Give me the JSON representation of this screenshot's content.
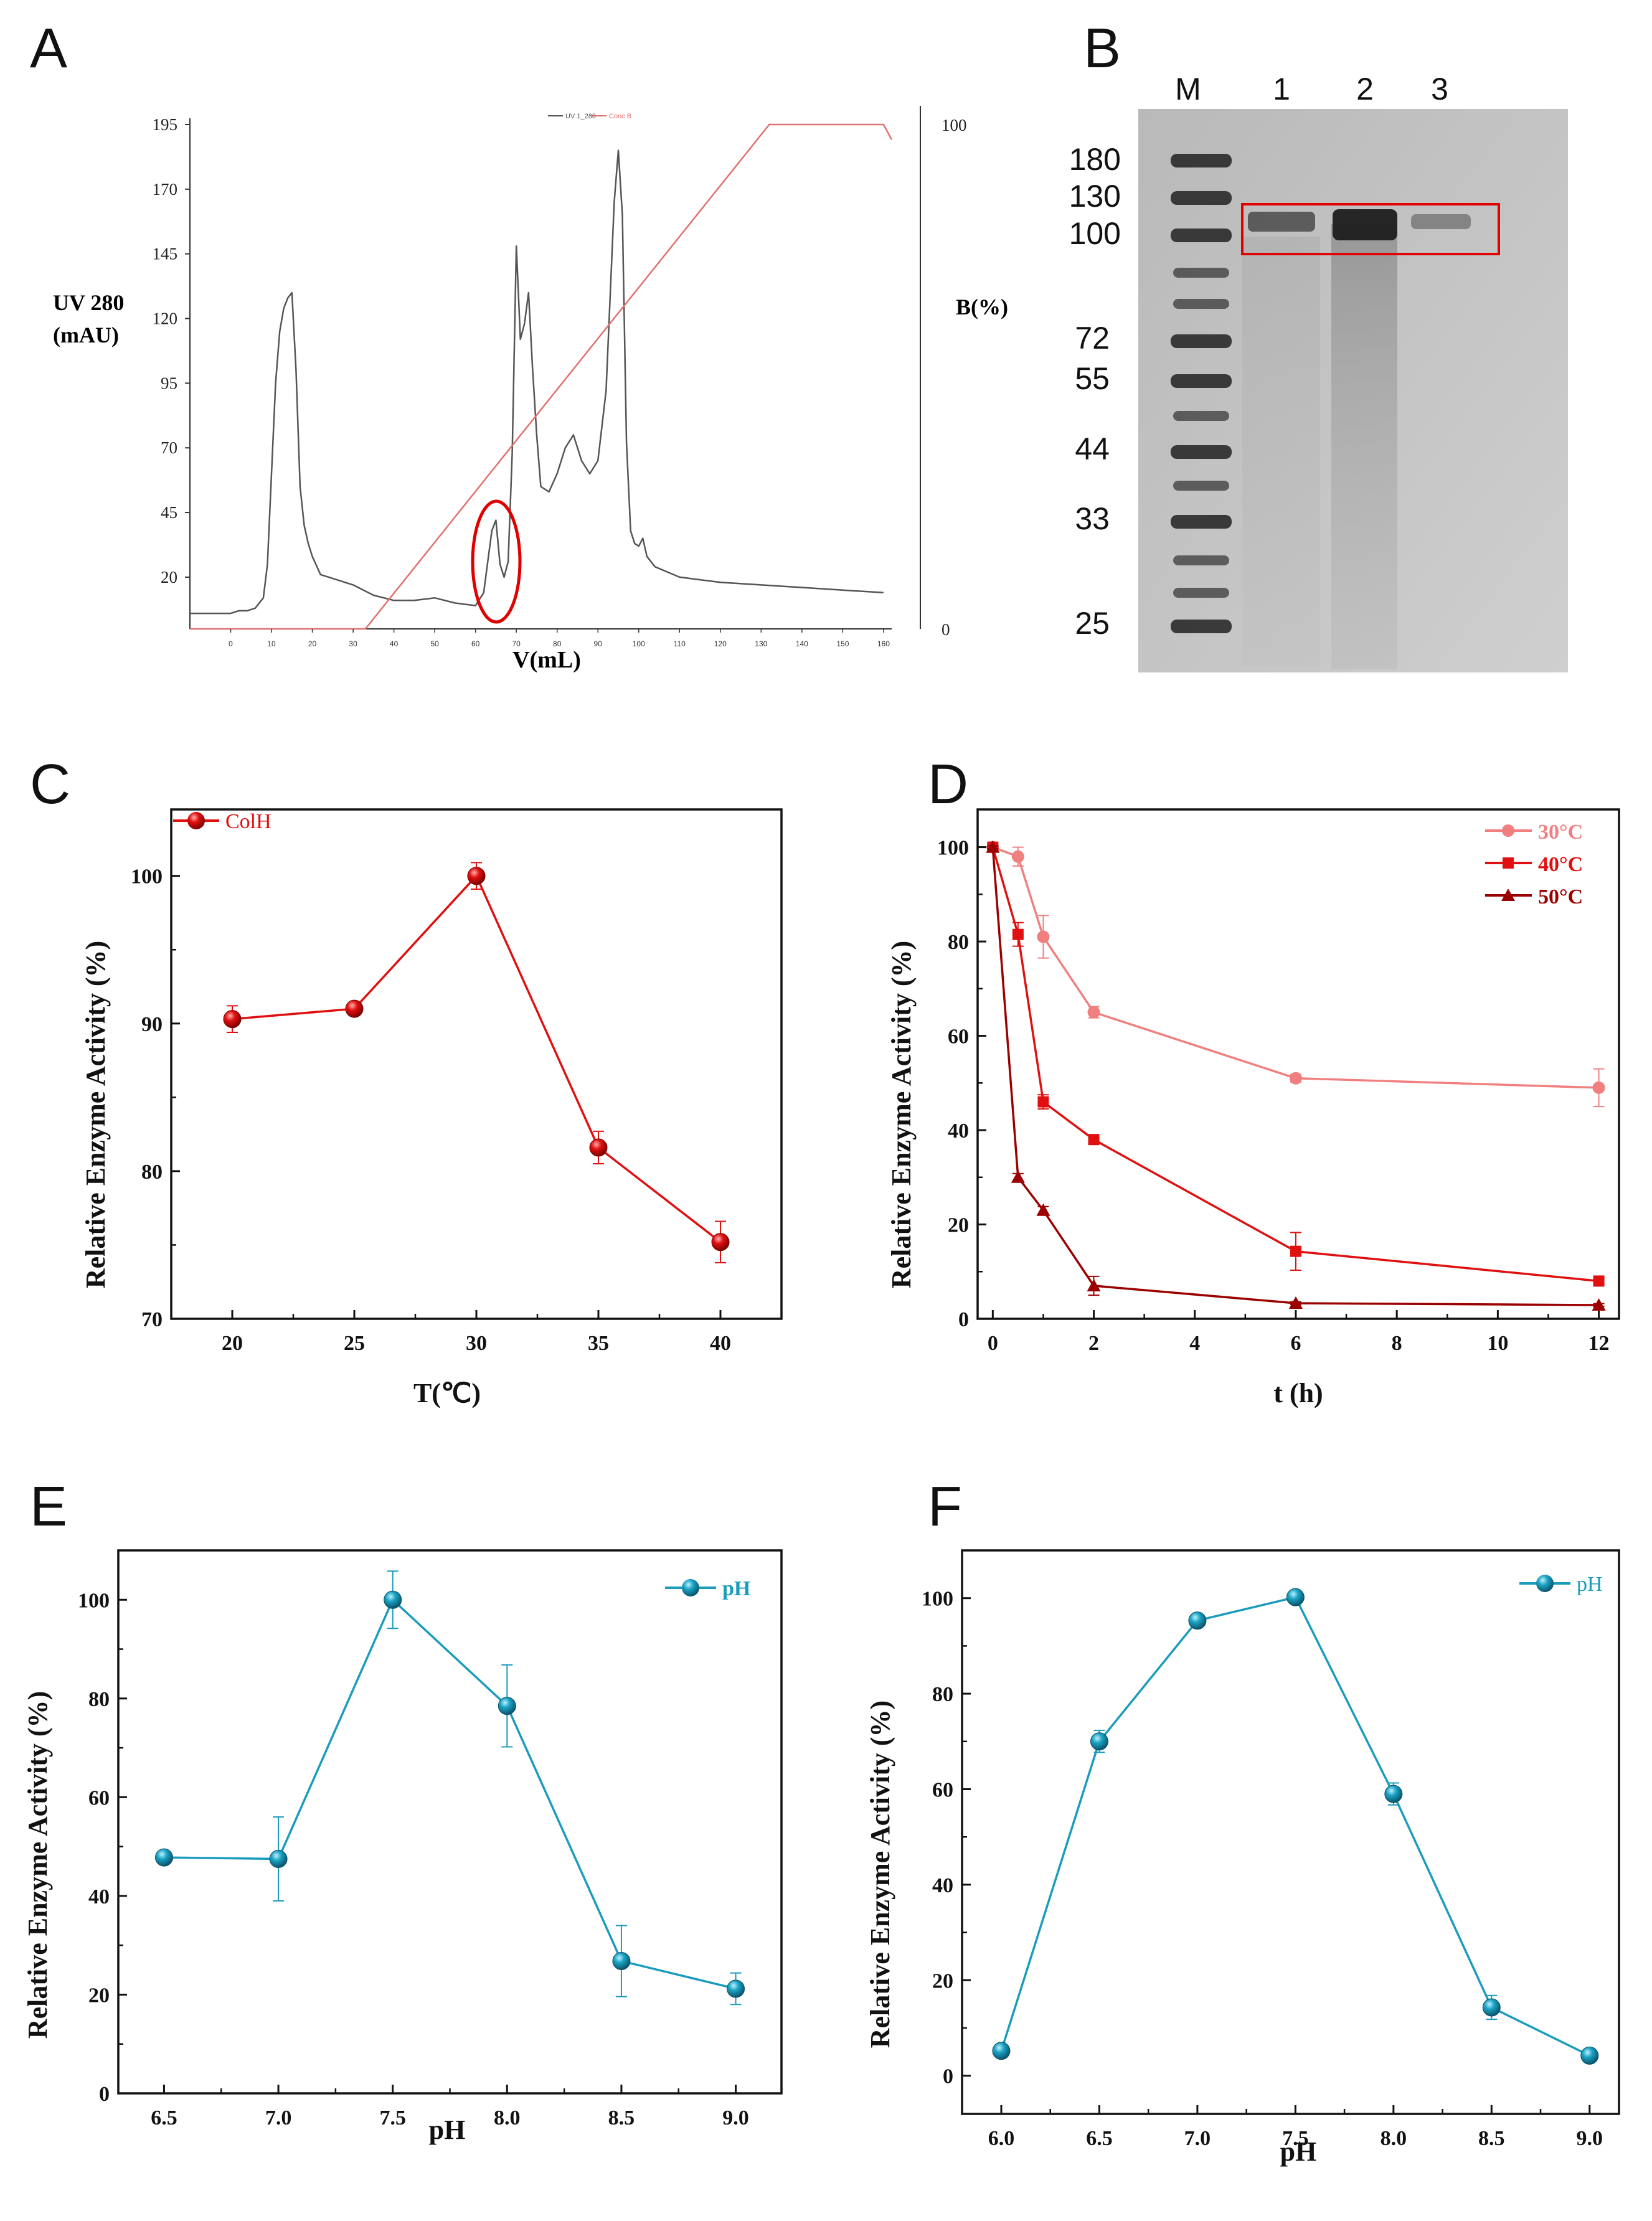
{
  "panels": {
    "A": "A",
    "B": "B",
    "C": "C",
    "D": "D",
    "E": "E",
    "F": "F"
  },
  "colors": {
    "uv_trace": "#555555",
    "gradient": "#e07070",
    "highlight": "#e00000",
    "colh": "#e01010",
    "d30": "#f08080",
    "d40": "#e01010",
    "d50": "#9b0000",
    "ph": "#1a9cbc"
  },
  "chart_data": [
    {
      "panel": "A",
      "type": "line",
      "ylabel_lines": [
        "UV 280",
        "(mAU)"
      ],
      "y2label": "B(%)",
      "xlabel": "V(mL)",
      "legend": [
        "UV 1_280",
        "Conc B"
      ],
      "y_ticks": [
        20,
        45,
        70,
        95,
        120,
        145,
        170,
        195
      ],
      "ylim": [
        0,
        195
      ],
      "y2_ticks": [
        0,
        100
      ],
      "y2lim": [
        0,
        100
      ],
      "x_ticks": [
        0,
        10,
        20,
        30,
        40,
        50,
        60,
        70,
        80,
        90,
        100,
        110,
        120,
        130,
        140,
        150,
        160
      ],
      "xlim": [
        -10,
        162
      ],
      "series": [
        {
          "name": "UV 1_280",
          "x": [
            -10,
            -2,
            0,
            2,
            4,
            6,
            8,
            9,
            10,
            11,
            12,
            13,
            14,
            15,
            16,
            17,
            18,
            19,
            20,
            22,
            24,
            26,
            30,
            35,
            40,
            45,
            50,
            55,
            60,
            62,
            63,
            64,
            65,
            66,
            67,
            68,
            69,
            70,
            71,
            72,
            73,
            74,
            75,
            76,
            78,
            80,
            82,
            84,
            86,
            88,
            90,
            92,
            94,
            95,
            96,
            97,
            98,
            99,
            100,
            101,
            102,
            104,
            110,
            120,
            130,
            140,
            150,
            160
          ],
          "y": [
            6,
            6,
            6,
            7,
            7,
            8,
            12,
            25,
            60,
            95,
            115,
            124,
            128,
            130,
            100,
            55,
            40,
            33,
            28,
            21,
            20,
            19,
            17,
            13,
            11,
            11,
            12,
            10,
            9,
            14,
            26,
            38,
            42,
            25,
            20,
            26,
            68,
            148,
            112,
            118,
            130,
            100,
            75,
            55,
            53,
            60,
            70,
            75,
            65,
            60,
            65,
            92,
            165,
            185,
            160,
            72,
            38,
            33,
            32,
            35,
            28,
            24,
            20,
            18,
            17,
            16,
            15,
            14
          ]
        },
        {
          "name": "Conc B",
          "x": [
            -10,
            33,
            132,
            160,
            162
          ],
          "y": [
            0,
            0,
            100,
            100,
            97
          ]
        }
      ]
    },
    {
      "panel": "B",
      "type": "gel",
      "lane_labels": [
        "M",
        "1",
        "2",
        "3"
      ],
      "marker_kda": [
        "180",
        "130",
        "100",
        "72",
        "55",
        "44",
        "33",
        "25"
      ]
    },
    {
      "panel": "C",
      "type": "line",
      "xlabel": "T(℃)",
      "ylabel": "Relative Enzyme Activity (%)",
      "xlim": [
        17.5,
        42.5
      ],
      "ylim": [
        70,
        104.5
      ],
      "x_ticks": [
        20,
        25,
        30,
        35,
        40
      ],
      "y_ticks": [
        70,
        80,
        90,
        100
      ],
      "series": [
        {
          "name": "ColH",
          "x": [
            20,
            25,
            30,
            35,
            40
          ],
          "y": [
            90.3,
            91.0,
            100.0,
            81.6,
            75.2
          ],
          "err": [
            0.9,
            0.4,
            0.9,
            1.1,
            1.4
          ]
        }
      ]
    },
    {
      "panel": "D",
      "type": "line",
      "xlabel": "t (h)",
      "ylabel": "Relative Enzyme Activity (%)",
      "xlim": [
        -0.3,
        12.4
      ],
      "ylim": [
        0,
        108
      ],
      "x_ticks": [
        0,
        2,
        4,
        6,
        8,
        10,
        12
      ],
      "y_ticks": [
        0,
        20,
        40,
        60,
        80,
        100
      ],
      "series": [
        {
          "name": "30°C",
          "marker": "circle",
          "x": [
            0,
            0.5,
            1,
            2,
            6,
            12
          ],
          "y": [
            100,
            98,
            81,
            65,
            51,
            49
          ],
          "err": [
            0.5,
            2,
            4.5,
            1.2,
            0.8,
            4
          ]
        },
        {
          "name": "40°C",
          "marker": "square",
          "x": [
            0,
            0.5,
            1,
            2,
            6,
            12
          ],
          "y": [
            100,
            81.5,
            46,
            38,
            14.3,
            8
          ],
          "err": [
            0.3,
            2.5,
            1.5,
            0.8,
            4,
            0.5
          ]
        },
        {
          "name": "50°C",
          "marker": "triangle",
          "x": [
            0,
            0.5,
            1,
            2,
            6,
            12
          ],
          "y": [
            100,
            30,
            23,
            7,
            3.3,
            2.9
          ],
          "err": [
            0.3,
            0.8,
            0.8,
            2,
            0.3,
            0.3
          ]
        }
      ]
    },
    {
      "panel": "E",
      "type": "line",
      "xlabel": "pH",
      "ylabel": "Relative Enzyme Activity (%)",
      "xlim": [
        6.3,
        9.2
      ],
      "ylim": [
        0,
        110
      ],
      "x_ticks": [
        "6.5",
        "7.0",
        "7.5",
        "8.0",
        "8.5",
        "9.0"
      ],
      "y_ticks": [
        0,
        20,
        40,
        60,
        80,
        100
      ],
      "series": [
        {
          "name": "pH",
          "x": [
            6.5,
            7.0,
            7.5,
            8.0,
            8.5,
            9.0
          ],
          "y": [
            47.8,
            47.5,
            100,
            78.5,
            26.8,
            21.2
          ],
          "err": [
            0.7,
            8.5,
            5.8,
            8.3,
            7.2,
            3.2
          ]
        }
      ]
    },
    {
      "panel": "F",
      "type": "line",
      "xlabel": "pH",
      "ylabel": "Relative Enzyme Activity (%)",
      "xlim": [
        5.8,
        9.15
      ],
      "ylim": [
        -8,
        110
      ],
      "x_ticks": [
        "6.0",
        "6.5",
        "7.0",
        "7.5",
        "8.0",
        "8.5",
        "9.0"
      ],
      "y_ticks": [
        0,
        20,
        40,
        60,
        80,
        100
      ],
      "series": [
        {
          "name": "pH",
          "x": [
            6.0,
            6.5,
            7.0,
            7.5,
            8.0,
            8.5,
            9.0
          ],
          "y": [
            5.2,
            70,
            95.3,
            100.2,
            59,
            14.3,
            4.2
          ],
          "err": [
            0.5,
            2.3,
            0.5,
            0.3,
            2.3,
            2.5,
            0.6
          ]
        }
      ]
    }
  ]
}
